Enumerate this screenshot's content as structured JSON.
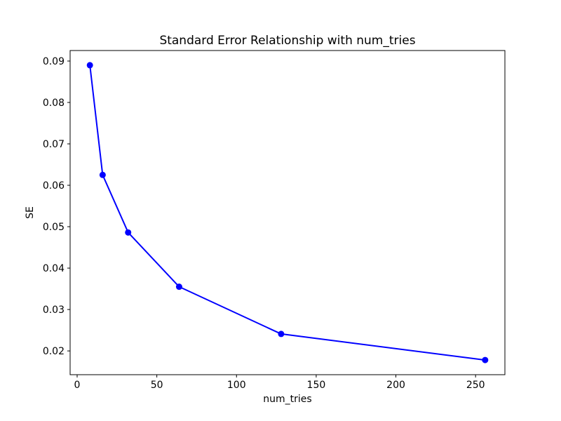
{
  "figure": {
    "background": "#ffffff"
  },
  "chart_data": {
    "type": "line",
    "title": "Standard Error Relationship with num_tries",
    "xlabel": "num_tries",
    "ylabel": "SE",
    "x": [
      8,
      16,
      32,
      64,
      128,
      256
    ],
    "y": [
      0.089,
      0.0625,
      0.0486,
      0.0355,
      0.0241,
      0.0178
    ],
    "line_color": "#0000ff",
    "marker": "circle",
    "marker_color": "#0000ff",
    "xlim": [
      -4.4,
      268.4
    ],
    "ylim": [
      0.01426,
      0.09254
    ],
    "xticks": [
      0,
      50,
      100,
      150,
      200,
      250
    ],
    "yticks": [
      0.02,
      0.03,
      0.04,
      0.05,
      0.06,
      0.07,
      0.08,
      0.09
    ],
    "ytick_decimals": 2,
    "grid": false,
    "legend": "none"
  }
}
